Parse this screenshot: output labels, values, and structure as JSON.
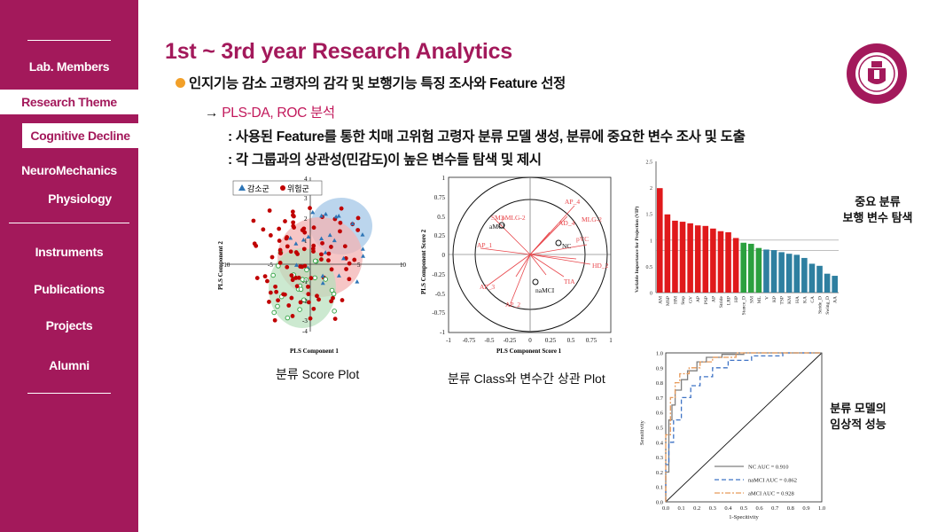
{
  "sidebar": {
    "items": {
      "lab_members": "Lab. Members",
      "research_theme": "Research Theme",
      "cognitive_decline": "Cognitive Decline",
      "neuromechanics": "NeuroMechanics",
      "physiology": "Physiology",
      "instruments": "Instruments",
      "publications": "Publications",
      "projects": "Projects",
      "alumni": "Alumni"
    }
  },
  "header": {
    "title": "1st ~ 3rd year Research Analytics"
  },
  "content": {
    "line1": "인지기능 감소 고령자의 감각 및 보행기능 특징 조사와 Feature 선정",
    "line2_arrow": "→",
    "line2": "PLS-DA, ROC 분석",
    "line3": ": 사용된 Feature를 통한 치매 고위험 고령자 분류 모델 생성, 분류에 중요한 변수 조사 및 도출",
    "line4": ": 각 그룹과의 상관성(민감도)이 높은 변수들 탐색 및 제시"
  },
  "captions": {
    "score_plot": "분류 Score Plot",
    "corr_plot": "분류 Class와 변수간 상관 Plot",
    "vip_note_1": "중요 분류",
    "vip_note_2": "보행 변수 탐색",
    "roc_note_1": "분류 모델의",
    "roc_note_2": "임상적 성능"
  },
  "score_plot": {
    "legend": [
      "감소군",
      "위험군"
    ],
    "xlabel": "PLS Component 1",
    "ylabel": "PLS Component 2",
    "xticks": [
      "-10",
      "-5",
      "0",
      "5",
      "10"
    ],
    "yticks": [
      "4",
      "3",
      "2",
      "1",
      "-1",
      "-2",
      "-3",
      "-4"
    ]
  },
  "corr_plot": {
    "xlabel": "PLS Component Score 1",
    "ylabel": "PLS Component Score 2",
    "ticks": [
      "-1",
      "-0.75",
      "-0.5",
      "-0.25",
      "0",
      "0.25",
      "0.5",
      "0.75",
      "1"
    ],
    "yticks": [
      "1",
      "0.75",
      "0.5",
      "0.25",
      "0",
      "-0.25",
      "-0.5",
      "-0.75",
      "-1"
    ],
    "labels": {
      "nc": "NC",
      "namci": "naMCI",
      "amci": "aMCI",
      "sm3": "SM3",
      "sm2": "SM2",
      "pmlg": "pMLG-2",
      "ap1": "AP_1",
      "ap4": "AP_4",
      "hd2": "HD_2",
      "pvc": "pVC",
      "ap3": "AP_3",
      "ad4": "AD_4",
      "tia": "TIA",
      "mlg2": "MLG-2",
      "ap2": "AP_2"
    }
  },
  "chart_data": [
    {
      "type": "bar",
      "ylabel": "Variable Importance for Projection (VIP)",
      "ylim": [
        0,
        2.5
      ],
      "yticks": [
        "0",
        "0.5",
        "1",
        "1.5",
        "2",
        "2.5"
      ],
      "categories": [
        "AM",
        "MSP",
        "HM",
        "Step",
        "GV",
        "AP",
        "PSP",
        "AP",
        "Stride",
        "LRP",
        "HP",
        "Stance_D",
        "SM",
        "ML",
        "V",
        "KP",
        "TSP",
        "KM",
        "HA",
        "KA",
        "CA",
        "Stride_D",
        "Swing_D",
        "AA"
      ],
      "values": [
        1.99,
        1.49,
        1.37,
        1.35,
        1.32,
        1.28,
        1.27,
        1.22,
        1.17,
        1.15,
        1.04,
        0.95,
        0.93,
        0.85,
        0.82,
        0.81,
        0.77,
        0.74,
        0.72,
        0.66,
        0.55,
        0.51,
        0.36,
        0.32
      ],
      "colors": [
        "#e0191b",
        "#e0191b",
        "#e0191b",
        "#e0191b",
        "#e0191b",
        "#e0191b",
        "#e0191b",
        "#e0191b",
        "#e0191b",
        "#e0191b",
        "#e0191b",
        "#2ca03f",
        "#2ca03f",
        "#2ca03f",
        "#2e7fa0",
        "#2e7fa0",
        "#2e7fa0",
        "#2e7fa0",
        "#2e7fa0",
        "#2e7fa0",
        "#2e7fa0",
        "#2e7fa0",
        "#2e7fa0",
        "#2e7fa0"
      ],
      "ref_lines": [
        1.0,
        0.8
      ]
    },
    {
      "type": "line",
      "xlabel": "1-Specitivity",
      "ylabel": "Sensitivity",
      "xlim": [
        0,
        1
      ],
      "ylim": [
        0,
        1
      ],
      "ticks": [
        "0.0",
        "0.1",
        "0.2",
        "0.3",
        "0.4",
        "0.5",
        "0.6",
        "0.7",
        "0.8",
        "0.9",
        "1.0"
      ],
      "series": [
        {
          "name": "NC AUC = 0.910",
          "color": "#7f7f7f",
          "dash": "",
          "x": [
            0,
            0,
            0.02,
            0.02,
            0.04,
            0.04,
            0.06,
            0.06,
            0.1,
            0.1,
            0.14,
            0.14,
            0.2,
            0.2,
            0.26,
            0.26,
            0.36,
            0.36,
            0.5,
            0.5,
            0.7,
            1
          ],
          "y": [
            0,
            0.2,
            0.2,
            0.55,
            0.55,
            0.65,
            0.65,
            0.75,
            0.75,
            0.82,
            0.82,
            0.88,
            0.88,
            0.94,
            0.94,
            0.97,
            0.97,
            0.99,
            0.99,
            1,
            1,
            1
          ]
        },
        {
          "name": "naMCI AUC = 0.862",
          "color": "#3f73c5",
          "dash": "5,3",
          "x": [
            0,
            0,
            0.02,
            0.02,
            0.05,
            0.05,
            0.1,
            0.1,
            0.16,
            0.16,
            0.22,
            0.22,
            0.3,
            0.3,
            0.4,
            0.4,
            0.55,
            0.55,
            0.75,
            0.75,
            1
          ],
          "y": [
            0,
            0.25,
            0.25,
            0.4,
            0.4,
            0.55,
            0.55,
            0.7,
            0.7,
            0.78,
            0.78,
            0.84,
            0.84,
            0.9,
            0.9,
            0.95,
            0.95,
            0.98,
            0.98,
            1,
            1
          ]
        },
        {
          "name": "aMCI AUC = 0.928",
          "color": "#e79a5a",
          "dash": "6,2,2,2",
          "x": [
            0,
            0,
            0.03,
            0.03,
            0.06,
            0.06,
            0.09,
            0.09,
            0.15,
            0.15,
            0.22,
            0.22,
            0.3,
            0.3,
            0.45,
            0.45,
            0.7,
            1
          ],
          "y": [
            0,
            0.45,
            0.45,
            0.7,
            0.7,
            0.8,
            0.8,
            0.86,
            0.86,
            0.9,
            0.9,
            0.94,
            0.94,
            0.97,
            0.97,
            1,
            1,
            1
          ]
        }
      ]
    }
  ]
}
